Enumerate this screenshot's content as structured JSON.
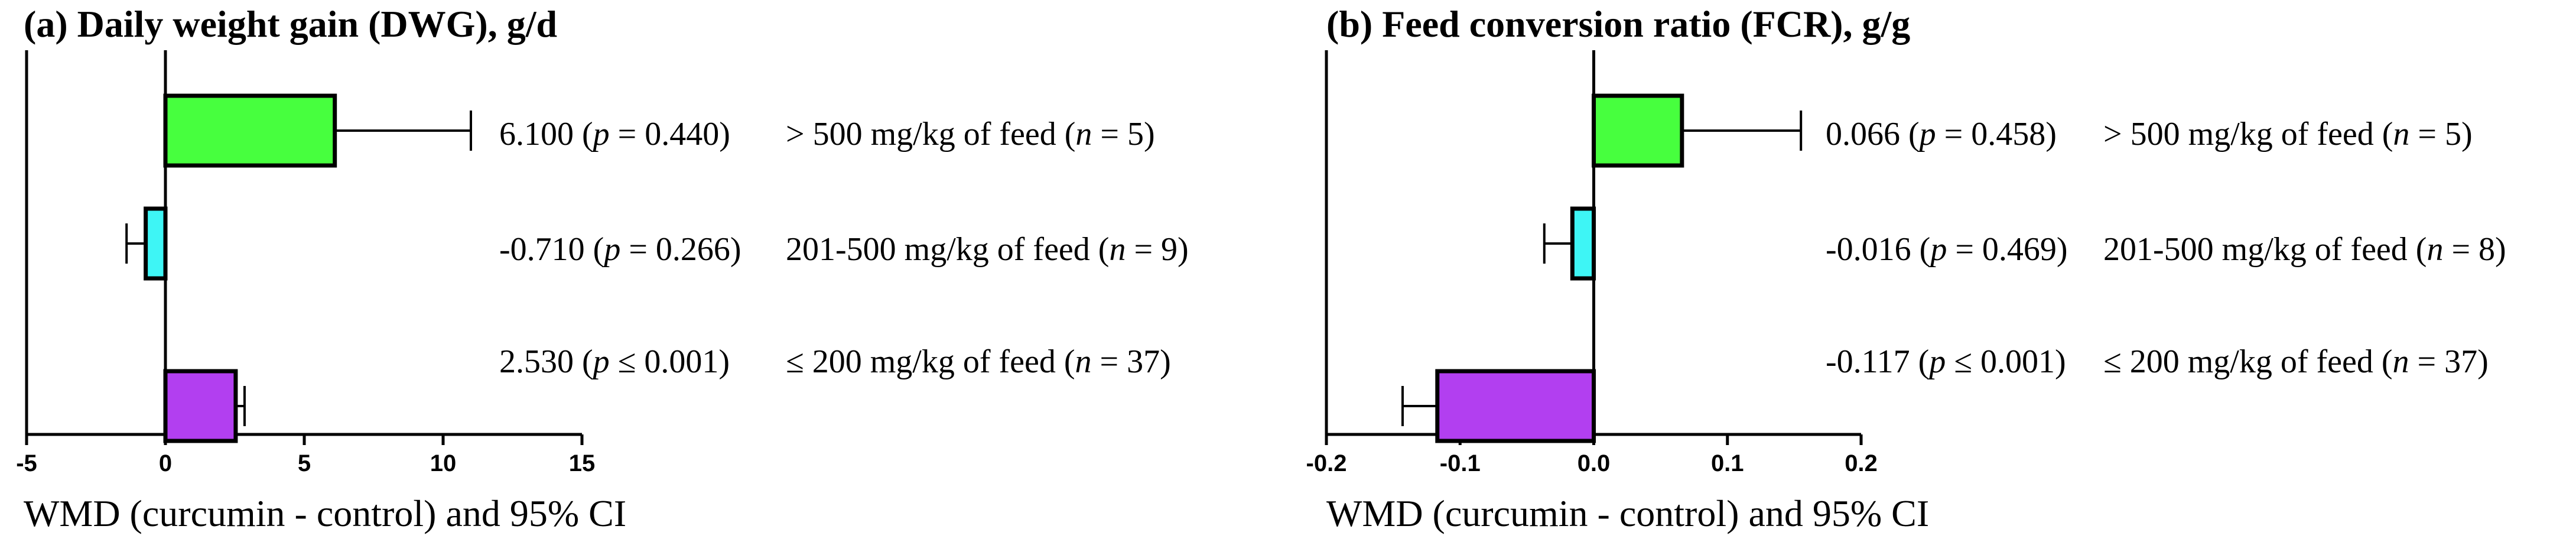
{
  "chart_data": [
    {
      "type": "bar",
      "orientation": "horizontal",
      "title": "(a) Daily weight gain (DWG), g/d",
      "xlabel": "WMD (curcumin - control) and 95% CI",
      "xlim": [
        -5,
        15
      ],
      "xticks": [
        "-5",
        "0",
        "5",
        "10",
        "15"
      ],
      "bars": [
        {
          "label": "> 500 mg/kg of feed",
          "n_label": "n",
          "n_value": "= 5",
          "value": 6.1,
          "ci": [
            1.2,
            11.0
          ],
          "value_text": "6.100",
          "p_label": "p",
          "p_text": "= 0.440",
          "color": "#47ff3e"
        },
        {
          "label": "201-500 mg/kg of feed",
          "n_label": "n",
          "n_value": "= 9",
          "value": -0.71,
          "ci": [
            -1.4,
            -0.02
          ],
          "value_text": "-0.710",
          "p_label": "p",
          "p_text": "= 0.266",
          "color": "#3ef5f5"
        },
        {
          "label": "≤ 200 mg/kg of feed",
          "n_label": "n",
          "n_value": "= 37",
          "value": 2.53,
          "ci": [
            2.2,
            2.85
          ],
          "value_text": "2.530",
          "p_label": "p",
          "p_text": "≤ 0.001",
          "color": "#b23ff0"
        }
      ]
    },
    {
      "type": "bar",
      "orientation": "horizontal",
      "title": "(b) Feed conversion ratio (FCR), g/g",
      "xlabel": "WMD (curcumin - control) and 95% CI",
      "xlim": [
        -0.2,
        0.2
      ],
      "xticks": [
        "-0.2",
        "-0.1",
        "0.0",
        "0.1",
        "0.2"
      ],
      "bars": [
        {
          "label": "> 500 mg/kg of feed",
          "n_label": "n",
          "n_value": "= 5",
          "value": 0.066,
          "ci": [
            -0.02,
            0.155
          ],
          "value_text": "0.066",
          "p_label": "p",
          "p_text": "= 0.458",
          "color": "#47ff3e"
        },
        {
          "label": "201-500 mg/kg of feed",
          "n_label": "n",
          "n_value": "= 8",
          "value": -0.016,
          "ci": [
            -0.037,
            0.005
          ],
          "value_text": "-0.016",
          "p_label": "p",
          "p_text": "= 0.469",
          "color": "#3ef5f5"
        },
        {
          "label": "≤ 200 mg/kg of feed",
          "n_label": "n",
          "n_value": "= 37",
          "value": -0.117,
          "ci": [
            -0.143,
            -0.09
          ],
          "value_text": "-0.117",
          "p_label": "p",
          "p_text": "≤ 0.001",
          "color": "#b23ff0"
        }
      ]
    }
  ]
}
